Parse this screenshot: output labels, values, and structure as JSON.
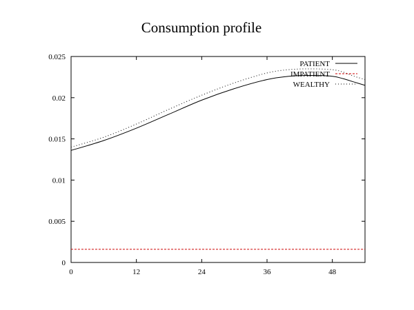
{
  "chart_data": {
    "type": "line",
    "title": "Consumption profile",
    "xlabel": "",
    "ylabel": "",
    "xlim": [
      0,
      54
    ],
    "ylim": [
      0,
      0.025
    ],
    "xticks": [
      0,
      12,
      24,
      36,
      48
    ],
    "yticks": [
      0,
      0.005,
      0.01,
      0.015,
      0.02,
      0.025
    ],
    "ytick_labels": [
      "0",
      "0.005",
      "0.01",
      "0.015",
      "0.02",
      "0.025"
    ],
    "grid": false,
    "legend_position": "top-right",
    "series": [
      {
        "name": "PATIENT",
        "color": "#000000",
        "dash": "solid",
        "x": [
          0,
          6,
          12,
          18,
          24,
          30,
          36,
          40,
          44,
          48,
          50,
          52,
          54
        ],
        "y": [
          0.0136,
          0.0148,
          0.0163,
          0.018,
          0.0197,
          0.0211,
          0.0222,
          0.0226,
          0.0227,
          0.0226,
          0.0223,
          0.0219,
          0.0215
        ]
      },
      {
        "name": "IMPATIENT",
        "color": "#cc0000",
        "dash": "dashed",
        "x": [
          0,
          54
        ],
        "y": [
          0.0016,
          0.0016
        ]
      },
      {
        "name": "WEALTHY",
        "color": "#000000",
        "dash": "dotted",
        "x": [
          0,
          6,
          12,
          18,
          24,
          30,
          36,
          40,
          44,
          48,
          50,
          52,
          54
        ],
        "y": [
          0.014,
          0.0152,
          0.0168,
          0.0186,
          0.0203,
          0.0218,
          0.023,
          0.0234,
          0.0235,
          0.0234,
          0.0231,
          0.0226,
          0.0222
        ]
      }
    ]
  }
}
